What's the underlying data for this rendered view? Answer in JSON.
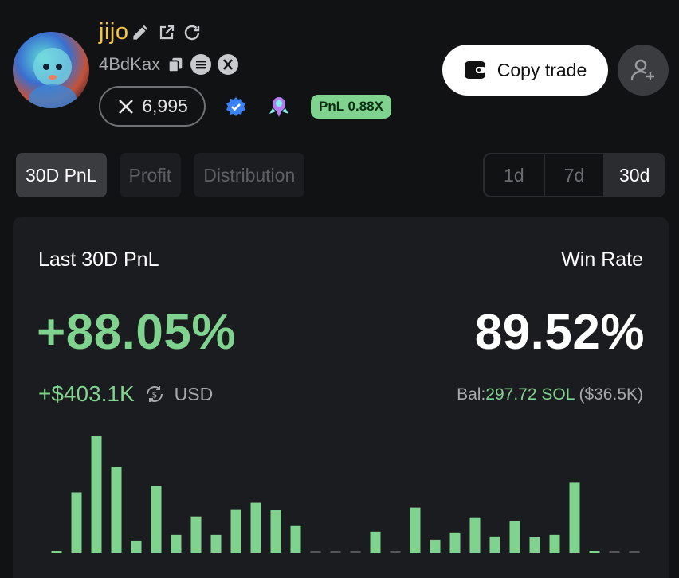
{
  "profile": {
    "name": "jijo",
    "address": "4BdKax",
    "x_followers": "6,995",
    "pnl_badge": "PnL 0.88X"
  },
  "actions": {
    "copy_trade_label": "Copy trade"
  },
  "tabs": [
    {
      "label": "30D PnL",
      "active": true
    },
    {
      "label": "Profit",
      "active": false
    },
    {
      "label": "Distribution",
      "active": false
    }
  ],
  "ranges": [
    {
      "label": "1d",
      "active": false
    },
    {
      "label": "7d",
      "active": false
    },
    {
      "label": "30d",
      "active": true
    }
  ],
  "stats": {
    "pnl_label": "Last 30D PnL",
    "pnl_pct": "+88.05%",
    "pnl_usd": "+$403.1K",
    "usd_unit": "USD",
    "win_label": "Win Rate",
    "win_pct": "89.52%",
    "bal_prefix": "Bal:",
    "bal_sol": "297.72 SOL",
    "bal_usd": "($36.5K)"
  },
  "colors": {
    "accent_green": "#7fd38e",
    "name_gold": "#f5c542",
    "background": "#111214",
    "card": "#1b1c1f"
  },
  "icons": [
    "edit-icon",
    "external-link-icon",
    "refresh-icon",
    "copy-icon",
    "solscan-icon",
    "x-icon",
    "verified-icon",
    "rocket-icon",
    "wallet-icon",
    "add-user-icon",
    "currency-swap-icon"
  ],
  "chart_data": {
    "type": "bar",
    "values": [
      1,
      75,
      145,
      107,
      15,
      83,
      22,
      45,
      22,
      54,
      62,
      53,
      33,
      0,
      0,
      0,
      26,
      0,
      56,
      16,
      25,
      43,
      20,
      39,
      19,
      22,
      87,
      1,
      0,
      0
    ]
  }
}
